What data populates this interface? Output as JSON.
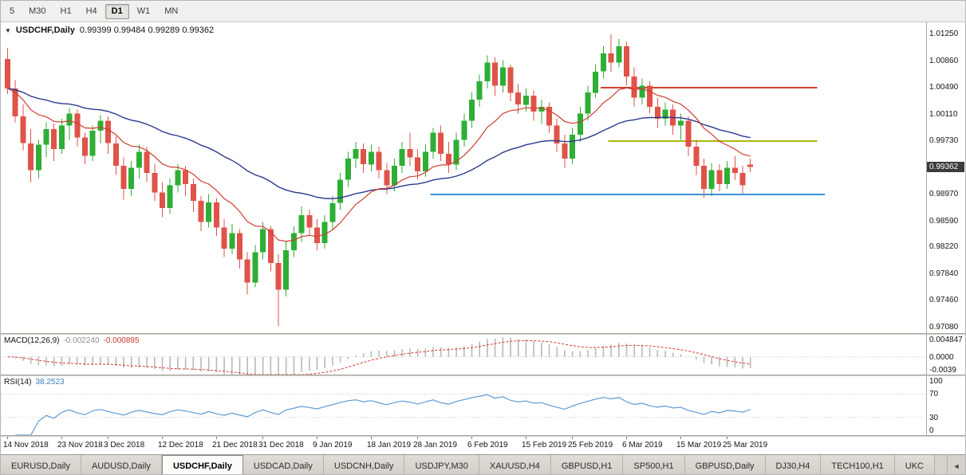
{
  "toolbar": {
    "timeframes": [
      {
        "label": "5",
        "active": false
      },
      {
        "label": "M30",
        "active": false
      },
      {
        "label": "H1",
        "active": false
      },
      {
        "label": "H4",
        "active": false
      },
      {
        "label": "D1",
        "active": true
      },
      {
        "label": "W1",
        "active": false
      },
      {
        "label": "MN",
        "active": false
      }
    ]
  },
  "icons": {
    "dropdown": "▼",
    "scroll_left": "◄"
  },
  "chart": {
    "symbol": "USDCHF,Daily",
    "ohlc_text": "0.99399 0.99484 0.99289 0.99362",
    "price_badge": "0.99362"
  },
  "chart_data": {
    "type": "candlestick",
    "symbol": "USDCHF",
    "timeframe": "Daily",
    "last_ohlc": {
      "open": 0.99399,
      "high": 0.99484,
      "low": 0.99289,
      "close": 0.99362
    },
    "price_min": 0.97,
    "price_max": 1.0142,
    "price_axis": [
      "1.01250",
      "1.00860",
      "1.00490",
      "1.00110",
      "0.99730",
      "0.98970",
      "0.98590",
      "0.98220",
      "0.97840",
      "0.97460",
      "0.97080"
    ],
    "colors": {
      "up": "#2eae35",
      "down": "#df5349",
      "ma_fast": "#cf3b30",
      "ma_slow": "#2b3a8f",
      "macd_hist": "#b9b9b9",
      "macd_signal": "#cf3b30",
      "rsi": "#5b9bd5",
      "level_red": "#d23f31",
      "level_olive": "#a9b70e",
      "level_blue": "#3d8fdd"
    },
    "ma_fast_period": 13,
    "ma_slow_period": 40,
    "levels": [
      {
        "price": 1.0049,
        "from": 77,
        "to": 105,
        "color_key": "level_red"
      },
      {
        "price": 0.9973,
        "from": 78,
        "to": 105,
        "color_key": "level_olive"
      },
      {
        "price": 0.9897,
        "from": 55,
        "to": 106,
        "color_key": "level_blue"
      }
    ],
    "candles": [
      [
        1.009,
        1.0105,
        1.004,
        1.0048
      ],
      [
        1.0048,
        1.006,
        1.0,
        1.0008
      ],
      [
        1.0008,
        1.0025,
        0.996,
        0.997
      ],
      [
        0.997,
        0.999,
        0.9915,
        0.9932
      ],
      [
        0.9932,
        0.9975,
        0.992,
        0.9968
      ],
      [
        0.9968,
        1.0,
        0.995,
        0.999
      ],
      [
        0.999,
        0.9998,
        0.9945,
        0.9962
      ],
      [
        0.9962,
        1.0005,
        0.9955,
        0.9995
      ],
      [
        0.9995,
        1.002,
        0.9975,
        1.0012
      ],
      [
        1.0012,
        1.0018,
        0.9965,
        0.9978
      ],
      [
        0.9978,
        0.9985,
        0.994,
        0.9952
      ],
      [
        0.9952,
        0.9995,
        0.9945,
        0.9988
      ],
      [
        0.9988,
        1.001,
        0.997,
        1.0002
      ],
      [
        1.0002,
        1.0008,
        0.9955,
        0.997
      ],
      [
        0.997,
        0.998,
        0.9925,
        0.9938
      ],
      [
        0.9938,
        0.995,
        0.989,
        0.9905
      ],
      [
        0.9905,
        0.9945,
        0.9895,
        0.9935
      ],
      [
        0.9935,
        0.9968,
        0.992,
        0.9958
      ],
      [
        0.9958,
        0.9965,
        0.9915,
        0.9928
      ],
      [
        0.9928,
        0.994,
        0.9888,
        0.99
      ],
      [
        0.99,
        0.9915,
        0.9865,
        0.9878
      ],
      [
        0.9878,
        0.992,
        0.987,
        0.991
      ],
      [
        0.991,
        0.994,
        0.99,
        0.9932
      ],
      [
        0.9932,
        0.9938,
        0.9895,
        0.9912
      ],
      [
        0.9912,
        0.992,
        0.9872,
        0.9888
      ],
      [
        0.9888,
        0.9895,
        0.9845,
        0.9858
      ],
      [
        0.9858,
        0.9898,
        0.985,
        0.9886
      ],
      [
        0.9886,
        0.9892,
        0.9838,
        0.985
      ],
      [
        0.985,
        0.9862,
        0.9808,
        0.982
      ],
      [
        0.982,
        0.9855,
        0.9812,
        0.9842
      ],
      [
        0.9842,
        0.9848,
        0.9792,
        0.9805
      ],
      [
        0.9805,
        0.9815,
        0.9755,
        0.9772
      ],
      [
        0.9772,
        0.9825,
        0.9765,
        0.9815
      ],
      [
        0.9815,
        0.9858,
        0.9805,
        0.9848
      ],
      [
        0.9848,
        0.9852,
        0.9788,
        0.98
      ],
      [
        0.98,
        0.9812,
        0.971,
        0.9762
      ],
      [
        0.9762,
        0.983,
        0.9752,
        0.9818
      ],
      [
        0.9818,
        0.9852,
        0.9808,
        0.9842
      ],
      [
        0.9842,
        0.988,
        0.983,
        0.9868
      ],
      [
        0.9868,
        0.9875,
        0.9838,
        0.985
      ],
      [
        0.985,
        0.9862,
        0.9818,
        0.9828
      ],
      [
        0.9828,
        0.9868,
        0.982,
        0.9858
      ],
      [
        0.9858,
        0.9895,
        0.9848,
        0.9885
      ],
      [
        0.9885,
        0.9928,
        0.9875,
        0.9918
      ],
      [
        0.9918,
        0.9958,
        0.9908,
        0.9948
      ],
      [
        0.9948,
        0.9972,
        0.9935,
        0.9962
      ],
      [
        0.9962,
        0.997,
        0.9928,
        0.994
      ],
      [
        0.994,
        0.9968,
        0.993,
        0.9958
      ],
      [
        0.9958,
        0.9965,
        0.992,
        0.9932
      ],
      [
        0.9932,
        0.9942,
        0.9898,
        0.991
      ],
      [
        0.991,
        0.9948,
        0.9902,
        0.9938
      ],
      [
        0.9938,
        0.9972,
        0.9928,
        0.9962
      ],
      [
        0.9962,
        0.9985,
        0.9938,
        0.995
      ],
      [
        0.995,
        0.9962,
        0.9918,
        0.993
      ],
      [
        0.993,
        0.9968,
        0.9922,
        0.9958
      ],
      [
        0.9958,
        0.9992,
        0.9948,
        0.9985
      ],
      [
        0.9985,
        0.9995,
        0.9945,
        0.9955
      ],
      [
        0.9955,
        0.9972,
        0.9928,
        0.994
      ],
      [
        0.994,
        0.9985,
        0.9932,
        0.9975
      ],
      [
        0.9975,
        1.0012,
        0.9965,
        1.0002
      ],
      [
        1.0002,
        1.0042,
        0.9992,
        1.0032
      ],
      [
        1.0032,
        1.0068,
        1.0022,
        1.0058
      ],
      [
        1.0058,
        1.0095,
        1.0048,
        1.0085
      ],
      [
        1.0085,
        1.0092,
        1.0038,
        1.0052
      ],
      [
        1.0052,
        1.0088,
        1.0042,
        1.0078
      ],
      [
        1.0078,
        1.0082,
        1.003,
        1.0042
      ],
      [
        1.0042,
        1.0055,
        1.0012,
        1.0025
      ],
      [
        1.0025,
        1.0048,
        1.0015,
        1.0038
      ],
      [
        1.0038,
        1.0045,
        1.0002,
        1.0015
      ],
      [
        1.0015,
        1.0032,
        0.9998,
        1.0022
      ],
      [
        1.0022,
        1.0028,
        0.9985,
        0.9995
      ],
      [
        0.9995,
        1.0005,
        0.9958,
        0.997
      ],
      [
        0.997,
        0.9982,
        0.9935,
        0.9948
      ],
      [
        0.9948,
        0.9992,
        0.994,
        0.9982
      ],
      [
        0.9982,
        1.0022,
        0.9972,
        1.0012
      ],
      [
        1.0012,
        1.0052,
        1.0002,
        1.0042
      ],
      [
        1.0042,
        1.0082,
        1.0035,
        1.0072
      ],
      [
        1.0072,
        1.0108,
        1.0062,
        1.0098
      ],
      [
        1.0098,
        1.0125,
        1.0072,
        1.0085
      ],
      [
        1.0085,
        1.0118,
        1.0078,
        1.0108
      ],
      [
        1.0108,
        1.0115,
        1.0052,
        1.0065
      ],
      [
        1.0065,
        1.0078,
        1.0022,
        1.0035
      ],
      [
        1.0035,
        1.0062,
        1.0025,
        1.0052
      ],
      [
        1.0052,
        1.0058,
        1.0012,
        1.0022
      ],
      [
        1.0022,
        1.0035,
        0.9992,
        1.0005
      ],
      [
        1.0005,
        1.0028,
        0.9995,
        1.0018
      ],
      [
        1.0018,
        1.0025,
        0.9982,
        0.9995
      ],
      [
        0.9995,
        1.0012,
        0.9975,
        1.0002
      ],
      [
        1.0002,
        1.0008,
        0.9952,
        0.9965
      ],
      [
        0.9965,
        0.9975,
        0.9925,
        0.9938
      ],
      [
        0.9938,
        0.9948,
        0.9892,
        0.9905
      ],
      [
        0.9905,
        0.9942,
        0.9895,
        0.9932
      ],
      [
        0.9932,
        0.994,
        0.9902,
        0.9912
      ],
      [
        0.9912,
        0.9945,
        0.9905,
        0.9935
      ],
      [
        0.9935,
        0.9952,
        0.9918,
        0.9928
      ],
      [
        0.9928,
        0.9938,
        0.9898,
        0.991
      ],
      [
        0.99399,
        0.99484,
        0.99289,
        0.99362
      ]
    ],
    "date_labels": [
      {
        "text": "14 Nov 2018",
        "bar": 0
      },
      {
        "text": "23 Nov 2018",
        "bar": 7
      },
      {
        "text": "3 Dec 2018",
        "bar": 13
      },
      {
        "text": "12 Dec 2018",
        "bar": 20
      },
      {
        "text": "21 Dec 2018",
        "bar": 27
      },
      {
        "text": "31 Dec 2018",
        "bar": 33
      },
      {
        "text": "9 Jan 2019",
        "bar": 40
      },
      {
        "text": "18 Jan 2019",
        "bar": 47
      },
      {
        "text": "28 Jan 2019",
        "bar": 53
      },
      {
        "text": "6 Feb 2019",
        "bar": 60
      },
      {
        "text": "15 Feb 2019",
        "bar": 67
      },
      {
        "text": "25 Feb 2019",
        "bar": 73
      },
      {
        "text": "6 Mar 2019",
        "bar": 80
      },
      {
        "text": "15 Mar 2019",
        "bar": 87
      },
      {
        "text": "25 Mar 2019",
        "bar": 93
      }
    ],
    "macd": {
      "label": "MACD(12,26,9)",
      "value_main": "-0.002240",
      "value_signal": "-0.000895",
      "axis_top": "0.004847",
      "axis_zero": "0.0000",
      "axis_bottom": "-0.0039",
      "range_min": -0.0039,
      "range_max": 0.004847,
      "fast": 12,
      "slow": 26,
      "signal": 9
    },
    "rsi": {
      "label": "RSI(14)",
      "value": "38.2523",
      "period": 14,
      "axis": [
        "100",
        "70",
        "30",
        "0"
      ],
      "guide_levels": [
        70,
        30
      ]
    }
  },
  "tabs": {
    "active_index": 2,
    "items": [
      {
        "label": "EURUSD,Daily"
      },
      {
        "label": "AUDUSD,Daily"
      },
      {
        "label": "USDCHF,Daily"
      },
      {
        "label": "USDCAD,Daily"
      },
      {
        "label": "USDCNH,Daily"
      },
      {
        "label": "USDJPY,M30"
      },
      {
        "label": "XAUUSD,H4"
      },
      {
        "label": "GBPUSD,H1"
      },
      {
        "label": "SP500,H1"
      },
      {
        "label": "GBPUSD,Daily"
      },
      {
        "label": "DJ30,H4"
      },
      {
        "label": "TECH100,H1"
      },
      {
        "label": "UKC"
      }
    ]
  }
}
